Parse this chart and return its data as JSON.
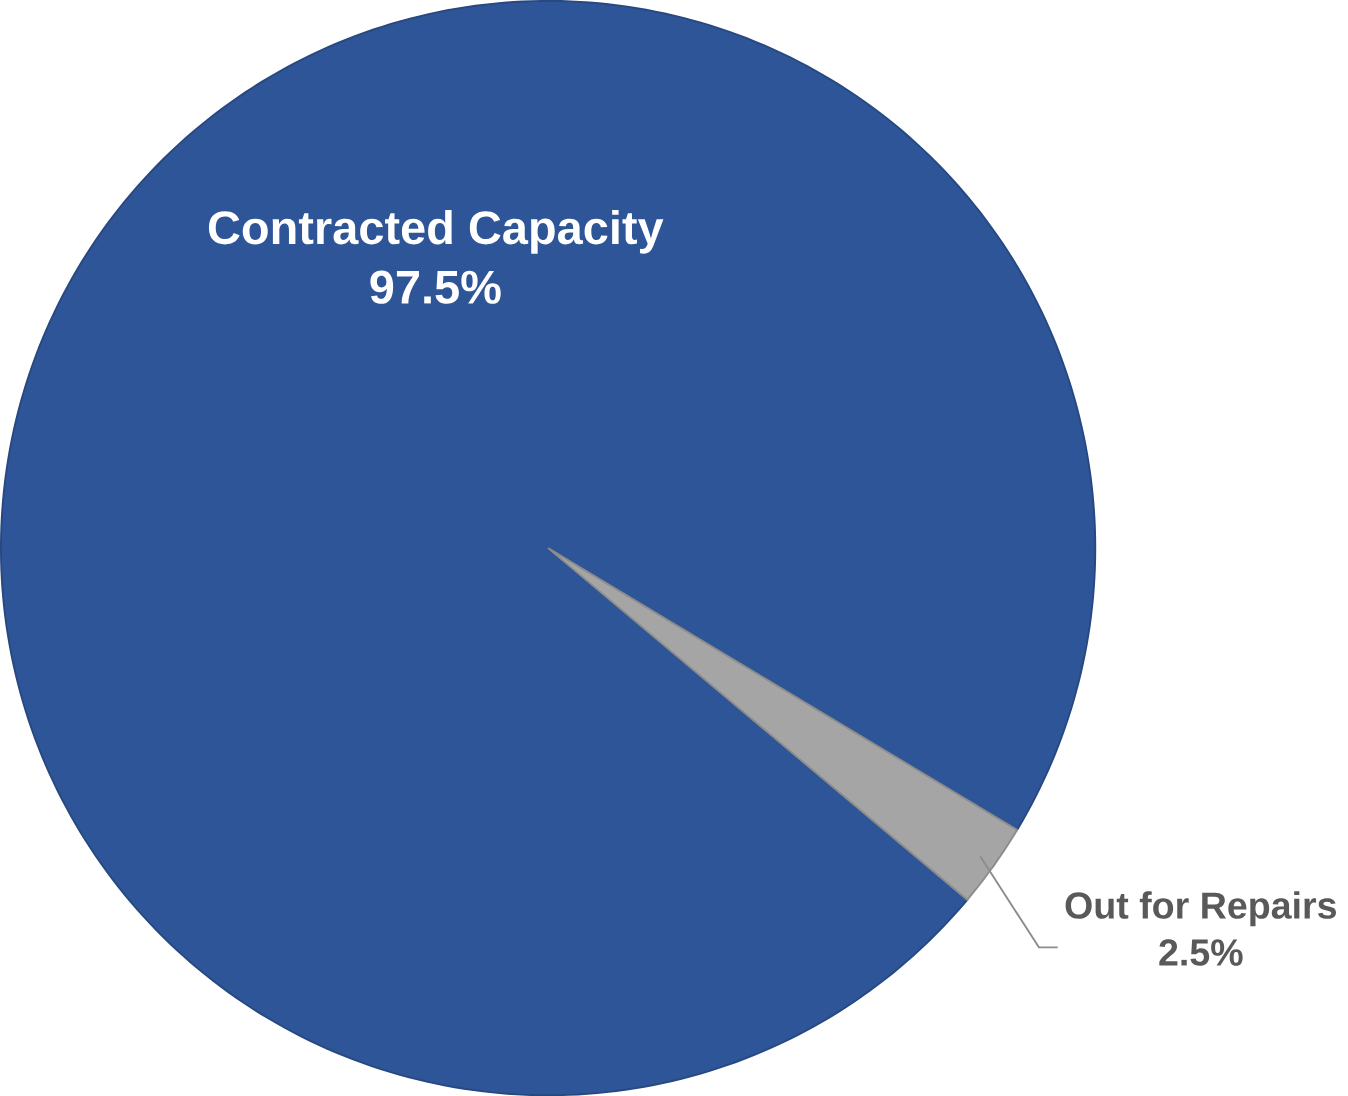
{
  "chart_data": {
    "type": "pie",
    "categories": [
      "Contracted Capacity",
      "Out for Repairs"
    ],
    "values": [
      97.5,
      2.5
    ],
    "colors": [
      "#2e5597",
      "#a5a5a5"
    ],
    "value_labels": [
      "97.5%",
      "2.5%"
    ]
  }
}
